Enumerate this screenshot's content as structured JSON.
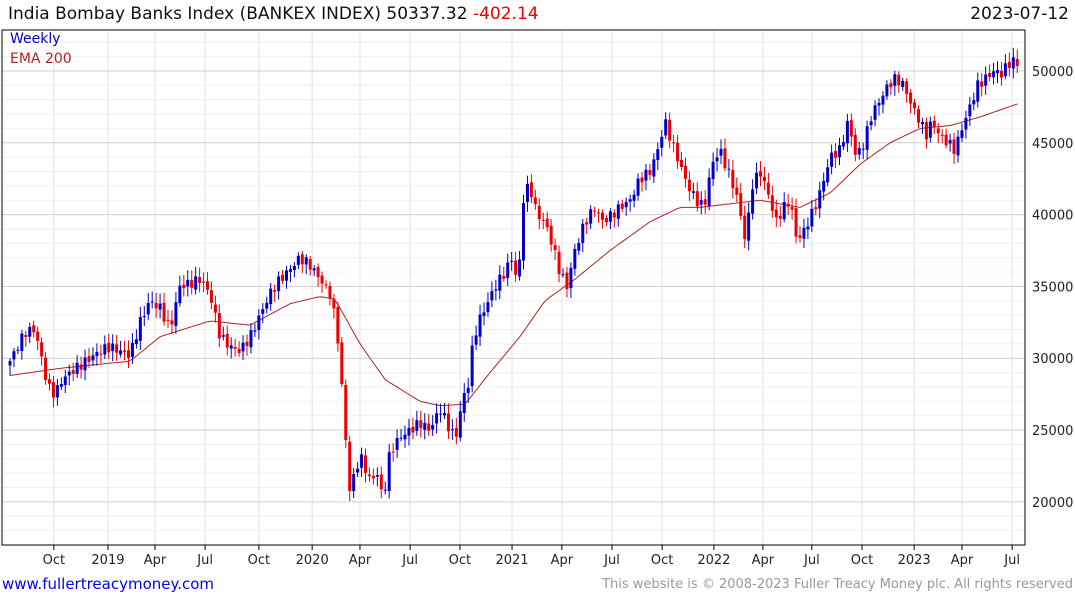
{
  "header": {
    "title": "India Bombay Banks Index (BANKEX INDEX)",
    "last": "50337.32",
    "change": "-402.14",
    "date": "2023-07-12"
  },
  "legend": {
    "series": "Weekly",
    "ema": "EMA 200"
  },
  "footer": {
    "site": "www.fullertreacymoney.com",
    "copyright": "This website is © 2008-2023 Fuller Treacy Money plc. All rights reserved"
  },
  "colors": {
    "up": "#0000cc",
    "down": "#ee0000",
    "ema": "#b22222",
    "grid": "#dddddd"
  },
  "chart_data": {
    "type": "candlestick",
    "title": "India Bombay Banks Index (BANKEX INDEX)",
    "frequency": "Weekly",
    "num_weeks": 256,
    "ylim": [
      17000,
      52850
    ],
    "yticks": [
      20000,
      25000,
      30000,
      35000,
      40000,
      45000,
      50000
    ],
    "xticks": [
      [
        "Oct",
        11.1
      ],
      [
        "2019",
        24.8
      ],
      [
        "Apr",
        36.7
      ],
      [
        "Jul",
        49.4
      ],
      [
        "Oct",
        63.0
      ],
      [
        "2020",
        76.5
      ],
      [
        "Apr",
        88.6
      ],
      [
        "Jul",
        101.3
      ],
      [
        "Oct",
        113.9
      ],
      [
        "2021",
        127.1
      ],
      [
        "Apr",
        139.7
      ],
      [
        "Jul",
        152.4
      ],
      [
        "Oct",
        165.1
      ],
      [
        "2022",
        178.2
      ],
      [
        "Apr",
        190.6
      ],
      [
        "Jul",
        203.0
      ],
      [
        "Oct",
        215.7
      ],
      [
        "2023",
        228.9
      ],
      [
        "Apr",
        241.0
      ],
      [
        "Jul",
        253.7
      ]
    ],
    "close_keypoints_week_value": [
      [
        0,
        29800
      ],
      [
        1.3,
        30500
      ],
      [
        3.8,
        31800
      ],
      [
        6.3,
        32000
      ],
      [
        7.6,
        30500
      ],
      [
        9.6,
        28000
      ],
      [
        11.4,
        27500
      ],
      [
        13.2,
        28500
      ],
      [
        15.2,
        29000
      ],
      [
        17.7,
        29500
      ],
      [
        20.3,
        30000
      ],
      [
        22.8,
        30500
      ],
      [
        25.3,
        30800
      ],
      [
        27.8,
        30500
      ],
      [
        30.4,
        30200
      ],
      [
        32.9,
        32500
      ],
      [
        35.4,
        34000
      ],
      [
        38,
        33500
      ],
      [
        40.5,
        32000
      ],
      [
        43,
        35000
      ],
      [
        45.6,
        35200
      ],
      [
        48.1,
        35500
      ],
      [
        50.6,
        34500
      ],
      [
        53.2,
        31500
      ],
      [
        55.7,
        30800
      ],
      [
        58.2,
        30500
      ],
      [
        60.8,
        31500
      ],
      [
        63.3,
        33000
      ],
      [
        65.8,
        34500
      ],
      [
        68.4,
        35500
      ],
      [
        70.9,
        36200
      ],
      [
        73.4,
        37000
      ],
      [
        75.9,
        36500
      ],
      [
        78.5,
        35500
      ],
      [
        81,
        34500
      ],
      [
        82.8,
        32000
      ],
      [
        84,
        28000
      ],
      [
        85.1,
        24000
      ],
      [
        86.1,
        20500
      ],
      [
        87.6,
        22500
      ],
      [
        89.1,
        23000
      ],
      [
        91.1,
        21500
      ],
      [
        93.2,
        22000
      ],
      [
        94.4,
        20000
      ],
      [
        96.2,
        23500
      ],
      [
        98.7,
        24500
      ],
      [
        101.3,
        25000
      ],
      [
        103.8,
        25500
      ],
      [
        106.3,
        25000
      ],
      [
        108.9,
        26500
      ],
      [
        111.4,
        25000
      ],
      [
        112.9,
        24500
      ],
      [
        114.4,
        27000
      ],
      [
        115.9,
        28000
      ],
      [
        117.2,
        31000
      ],
      [
        118.5,
        32500
      ],
      [
        120.3,
        33500
      ],
      [
        122.8,
        35000
      ],
      [
        125.3,
        36000
      ],
      [
        127.1,
        37000
      ],
      [
        128.6,
        35000
      ],
      [
        130.1,
        41500
      ],
      [
        131.6,
        42000
      ],
      [
        133.4,
        40000
      ],
      [
        135.4,
        39500
      ],
      [
        137.2,
        38000
      ],
      [
        139.2,
        36000
      ],
      [
        141,
        35000
      ],
      [
        143,
        37500
      ],
      [
        145.6,
        39500
      ],
      [
        148.1,
        40500
      ],
      [
        150.1,
        39500
      ],
      [
        152.4,
        40000
      ],
      [
        154.4,
        40500
      ],
      [
        157,
        41000
      ],
      [
        159.5,
        42500
      ],
      [
        162,
        43000
      ],
      [
        164,
        44500
      ],
      [
        165.8,
        46500
      ],
      [
        167.6,
        45000
      ],
      [
        169.6,
        43500
      ],
      [
        171.6,
        42000
      ],
      [
        173.7,
        41000
      ],
      [
        175.7,
        40500
      ],
      [
        177.7,
        43500
      ],
      [
        179.7,
        44500
      ],
      [
        181.8,
        43000
      ],
      [
        183.8,
        41500
      ],
      [
        185.3,
        39500
      ],
      [
        186.3,
        38000
      ],
      [
        187.8,
        42000
      ],
      [
        189.9,
        43000
      ],
      [
        191.9,
        41500
      ],
      [
        193.9,
        39500
      ],
      [
        195.9,
        40500
      ],
      [
        197.5,
        41000
      ],
      [
        199,
        38500
      ],
      [
        200.5,
        38500
      ],
      [
        202,
        39500
      ],
      [
        203.8,
        40500
      ],
      [
        205.6,
        42000
      ],
      [
        207.6,
        44000
      ],
      [
        210.1,
        44500
      ],
      [
        212.2,
        46500
      ],
      [
        214.2,
        44000
      ],
      [
        216.2,
        45000
      ],
      [
        218.2,
        47000
      ],
      [
        220.3,
        48000
      ],
      [
        222.3,
        49000
      ],
      [
        224.3,
        49500
      ],
      [
        226.3,
        49000
      ],
      [
        228.4,
        47500
      ],
      [
        230.4,
        46500
      ],
      [
        231.9,
        45500
      ],
      [
        233.4,
        46500
      ],
      [
        235.4,
        45500
      ],
      [
        237.5,
        45000
      ],
      [
        239.2,
        44500
      ],
      [
        241,
        46000
      ],
      [
        243,
        47500
      ],
      [
        245,
        49000
      ],
      [
        247.1,
        49500
      ],
      [
        249.1,
        50000
      ],
      [
        251.1,
        49800
      ],
      [
        252.7,
        50500
      ],
      [
        253.9,
        50700
      ],
      [
        255,
        50337.32
      ]
    ],
    "ema200_keypoints_week_value": [
      [
        0,
        28800
      ],
      [
        12.7,
        29300
      ],
      [
        30.4,
        29800
      ],
      [
        38,
        31500
      ],
      [
        50.6,
        32600
      ],
      [
        60.8,
        32300
      ],
      [
        70.9,
        33800
      ],
      [
        78.5,
        34300
      ],
      [
        82.3,
        34100
      ],
      [
        88.6,
        31000
      ],
      [
        95,
        28500
      ],
      [
        103.8,
        27000
      ],
      [
        108.9,
        26700
      ],
      [
        115.2,
        26800
      ],
      [
        121.5,
        29000
      ],
      [
        129.1,
        31500
      ],
      [
        135.4,
        34000
      ],
      [
        143,
        35500
      ],
      [
        151.9,
        37500
      ],
      [
        162,
        39500
      ],
      [
        169.6,
        40500
      ],
      [
        174.7,
        40500
      ],
      [
        189.9,
        41000
      ],
      [
        200,
        40500
      ],
      [
        207.6,
        41500
      ],
      [
        215.2,
        43500
      ],
      [
        222.8,
        45000
      ],
      [
        230.4,
        46000
      ],
      [
        238,
        46200
      ],
      [
        245.6,
        46800
      ],
      [
        255,
        47700
      ]
    ]
  }
}
